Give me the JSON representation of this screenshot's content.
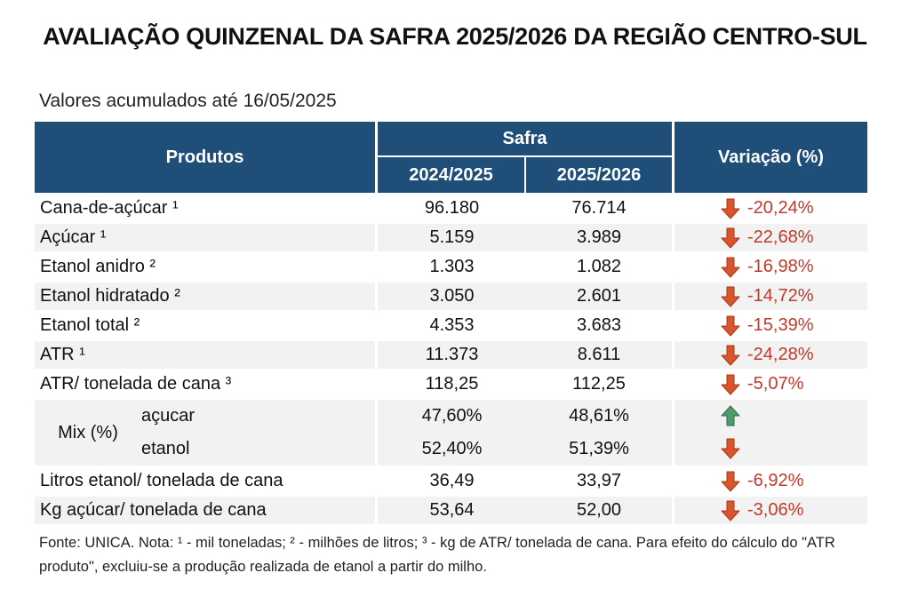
{
  "title": "AVALIAÇÃO QUINZENAL DA SAFRA 2025/2026 DA REGIÃO CENTRO-SUL",
  "subtitle": "Valores acumulados até 16/05/2025",
  "header": {
    "produtos": "Produtos",
    "safra": "Safra",
    "variacao": "Variação (%)",
    "y1": "2024/2025",
    "y2": "2025/2026"
  },
  "colors": {
    "header_bg": "#1f4e79",
    "down": "#d9552b",
    "up": "#4e9a6b",
    "pct_text": "#c0392b",
    "alt_row": "#f2f2f2"
  },
  "rows": [
    {
      "produto": "Cana-de-açúcar ¹",
      "v1": "96.180",
      "v2": "76.714",
      "dir": "down",
      "var": "-20,24%"
    },
    {
      "produto": "Açúcar ¹",
      "v1": "5.159",
      "v2": "3.989",
      "dir": "down",
      "var": "-22,68%"
    },
    {
      "produto": "Etanol anidro ²",
      "v1": "1.303",
      "v2": "1.082",
      "dir": "down",
      "var": "-16,98%"
    },
    {
      "produto": "Etanol hidratado ²",
      "v1": "3.050",
      "v2": "2.601",
      "dir": "down",
      "var": "-14,72%"
    },
    {
      "produto": "Etanol total ²",
      "v1": "4.353",
      "v2": "3.683",
      "dir": "down",
      "var": "-15,39%"
    },
    {
      "produto": "ATR ¹",
      "v1": "11.373",
      "v2": "8.611",
      "dir": "down",
      "var": "-24,28%"
    },
    {
      "produto": "ATR/ tonelada de cana ³",
      "v1": "118,25",
      "v2": "112,25",
      "dir": "down",
      "var": "-5,07%"
    }
  ],
  "mix": {
    "label": "Mix (%)",
    "acucar": {
      "label": "açucar",
      "v1": "47,60%",
      "v2": "48,61%",
      "dir": "up"
    },
    "etanol": {
      "label": "etanol",
      "v1": "52,40%",
      "v2": "51,39%",
      "dir": "down"
    }
  },
  "rows_after": [
    {
      "produto": "Litros etanol/ tonelada de cana",
      "v1": "36,49",
      "v2": "33,97",
      "dir": "down",
      "var": "-6,92%"
    },
    {
      "produto": "Kg açúcar/ tonelada de cana",
      "v1": "53,64",
      "v2": "52,00",
      "dir": "down",
      "var": "-3,06%"
    }
  ],
  "note": "Fonte: UNICA. Nota: ¹ - mil toneladas; ² - milhões de litros; ³ - kg de ATR/ tonelada de cana. Para efeito do cálculo do \"ATR produto\", excluiu-se a produção realizada de etanol a partir do milho."
}
